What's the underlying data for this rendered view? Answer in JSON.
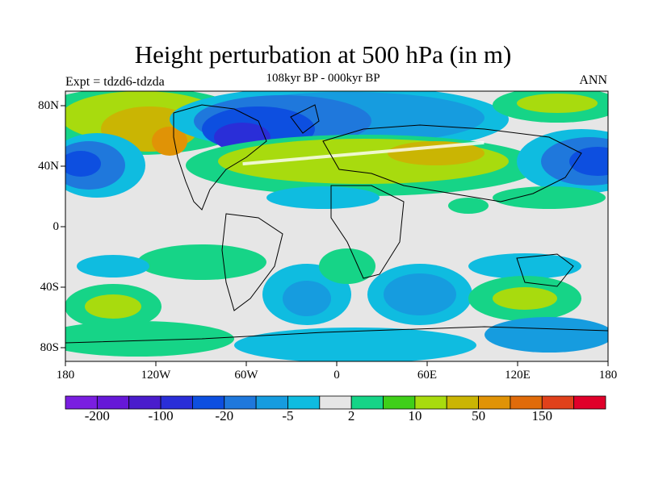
{
  "title": "Height perturbation at 500 hPa (in m)",
  "subtitle": "108kyr BP - 000kyr BP",
  "left_label": "Expt = tdzd6-tdzda",
  "right_label": "ANN",
  "lat_labels": [
    "80N",
    "40N",
    "0",
    "40S",
    "80S"
  ],
  "lon_labels": [
    "180",
    "120W",
    "60W",
    "0",
    "60E",
    "120E",
    "180"
  ],
  "colorbar": {
    "colors": [
      "#7a1ee0",
      "#6618d8",
      "#4a1ccc",
      "#2a2ed8",
      "#0d4fe0",
      "#1f78dc",
      "#169cdf",
      "#0fbce0",
      "#e6e6e6",
      "#16d487",
      "#3fcf19",
      "#a8db0e",
      "#cab503",
      "#e09306",
      "#e06b0a",
      "#e0411b",
      "#e0002a"
    ],
    "labels": [
      "-200",
      "-100",
      "-20",
      "-5",
      "2",
      "10",
      "50",
      "150"
    ]
  }
}
